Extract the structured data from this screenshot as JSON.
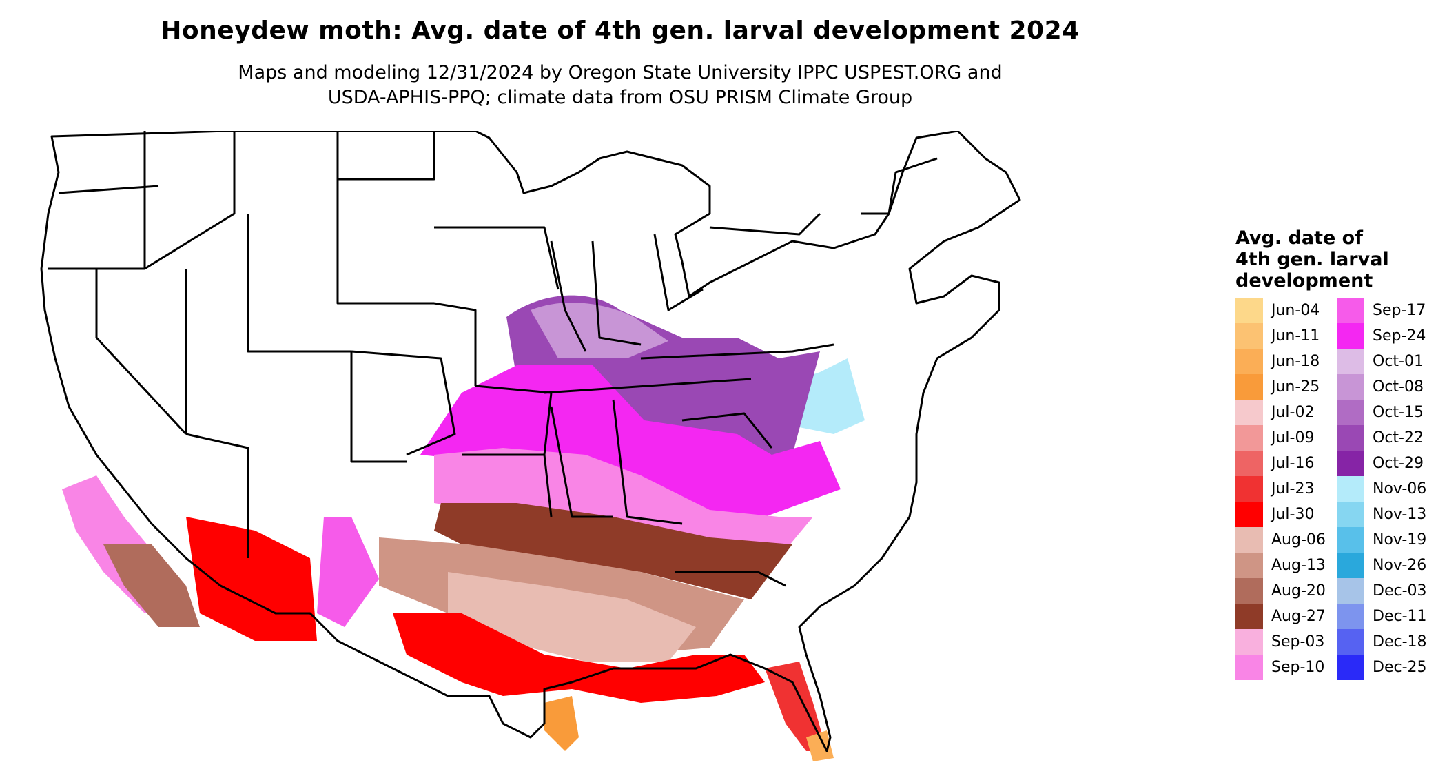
{
  "title": "Honeydew moth: Avg. date of 4th gen. larval development 2024",
  "subtitle_line1": "Maps and modeling 12/31/2024 by Oregon State University IPPC USPEST.ORG and",
  "subtitle_line2": "USDA-APHIS-PPQ; climate data from OSU PRISM Climate Group",
  "legend": {
    "title_line1": "Avg. date of",
    "title_line2": "4th gen. larval",
    "title_line3": "development",
    "items": [
      {
        "label": "Jun-04",
        "color": "#FDD88A"
      },
      {
        "label": "Jun-11",
        "color": "#FCC272"
      },
      {
        "label": "Jun-18",
        "color": "#FBAE56"
      },
      {
        "label": "Jun-25",
        "color": "#F99B3A"
      },
      {
        "label": "Jul-02",
        "color": "#F6C9CC"
      },
      {
        "label": "Jul-09",
        "color": "#F29898"
      },
      {
        "label": "Jul-16",
        "color": "#EE6464"
      },
      {
        "label": "Jul-23",
        "color": "#F03232"
      },
      {
        "label": "Jul-30",
        "color": "#FF0000"
      },
      {
        "label": "Aug-06",
        "color": "#E8BCB2"
      },
      {
        "label": "Aug-13",
        "color": "#CF9585"
      },
      {
        "label": "Aug-20",
        "color": "#B06C5C"
      },
      {
        "label": "Aug-27",
        "color": "#8F3B28"
      },
      {
        "label": "Sep-03",
        "color": "#F9B0DE"
      },
      {
        "label": "Sep-10",
        "color": "#F985E6"
      },
      {
        "label": "Sep-17",
        "color": "#F65BEA"
      },
      {
        "label": "Sep-24",
        "color": "#F427F2"
      },
      {
        "label": "Oct-01",
        "color": "#DDBCE6"
      },
      {
        "label": "Oct-08",
        "color": "#C895D6"
      },
      {
        "label": "Oct-15",
        "color": "#B06CC4"
      },
      {
        "label": "Oct-22",
        "color": "#9A48B4"
      },
      {
        "label": "Oct-29",
        "color": "#8624A6"
      },
      {
        "label": "Nov-06",
        "color": "#B4EBFA"
      },
      {
        "label": "Nov-13",
        "color": "#86D6F1"
      },
      {
        "label": "Nov-19",
        "color": "#58C0EA"
      },
      {
        "label": "Nov-26",
        "color": "#2AA8DC"
      },
      {
        "label": "Dec-03",
        "color": "#A7C4E8"
      },
      {
        "label": "Dec-11",
        "color": "#7D94EE"
      },
      {
        "label": "Dec-18",
        "color": "#5662F2"
      },
      {
        "label": "Dec-25",
        "color": "#2A2AF8"
      }
    ]
  }
}
